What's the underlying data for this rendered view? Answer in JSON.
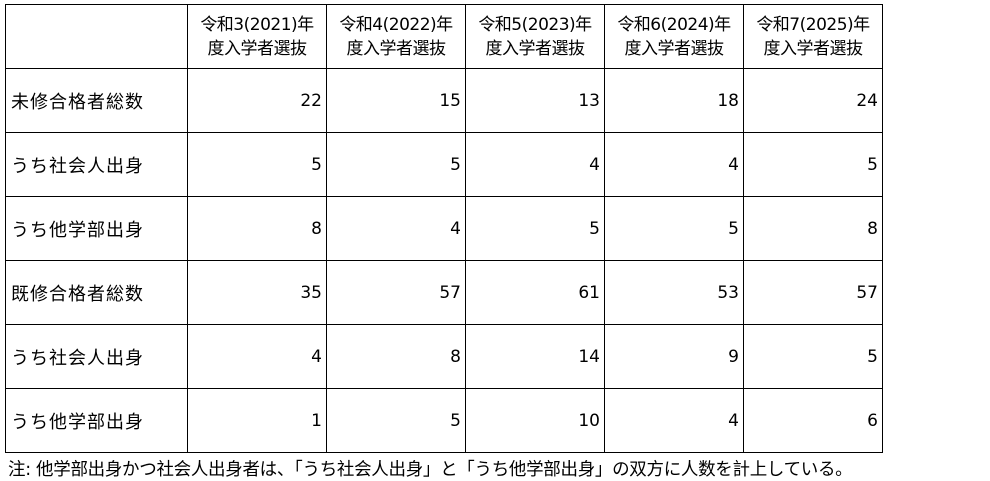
{
  "table": {
    "columns": [
      {
        "line1": "令和3(2021)年",
        "line2": "度入学者選抜"
      },
      {
        "line1": "令和4(2022)年",
        "line2": "度入学者選抜"
      },
      {
        "line1": "令和5(2023)年",
        "line2": "度入学者選抜"
      },
      {
        "line1": "令和6(2024)年",
        "line2": "度入学者選抜"
      },
      {
        "line1": "令和7(2025)年",
        "line2": "度入学者選抜"
      }
    ],
    "rows": [
      {
        "label": "未修合格者総数",
        "values": [
          "22",
          "15",
          "13",
          "18",
          "24"
        ]
      },
      {
        "label": "うち社会人出身",
        "values": [
          "5",
          "5",
          "4",
          "4",
          "5"
        ]
      },
      {
        "label": "うち他学部出身",
        "values": [
          "8",
          "4",
          "5",
          "5",
          "8"
        ]
      },
      {
        "label": "既修合格者総数",
        "values": [
          "35",
          "57",
          "61",
          "53",
          "57"
        ]
      },
      {
        "label": "うち社会人出身",
        "values": [
          "4",
          "8",
          "14",
          "9",
          "5"
        ]
      },
      {
        "label": "うち他学部出身",
        "values": [
          "1",
          "5",
          "10",
          "4",
          "6"
        ]
      }
    ]
  },
  "note": "注: 他学部出身かつ社会人出身者は、「うち社会人出身」と「うち他学部出身」の双方に人数を計上している。"
}
